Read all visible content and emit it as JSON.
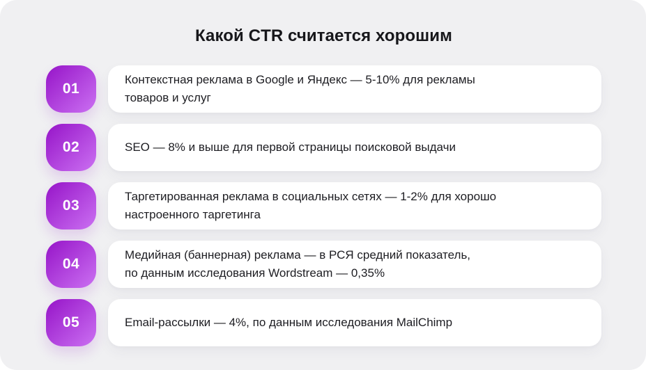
{
  "title": "Какой CTR считается хорошим",
  "items": [
    {
      "number": "01",
      "text": "Контекстная реклама в Google и Яндекс — 5-10% для рекламы\nтоваров и услуг"
    },
    {
      "number": "02",
      "text": "SEO — 8% и выше для первой страницы поисковой выдачи"
    },
    {
      "number": "03",
      "text": "Таргетированная реклама в социальных сетях — 1-2% для хорошо\nнастроенного таргетинга"
    },
    {
      "number": "04",
      "text": "Медийная (баннерная) реклама — в РСЯ средний показатель,\nпо данным исследования Wordstream — 0,35%"
    },
    {
      "number": "05",
      "text": "Email-рассылки — 4%, по данным исследования MailChimp"
    }
  ],
  "colors": {
    "canvas_bg": "#F0F0F2",
    "card_bg": "#FFFFFF",
    "badge_gradient_start": "#9614C8",
    "badge_gradient_end": "#CB70F2",
    "badge_text": "#FFFFFF",
    "title_text": "#17171B",
    "body_text": "#1D1D22"
  }
}
